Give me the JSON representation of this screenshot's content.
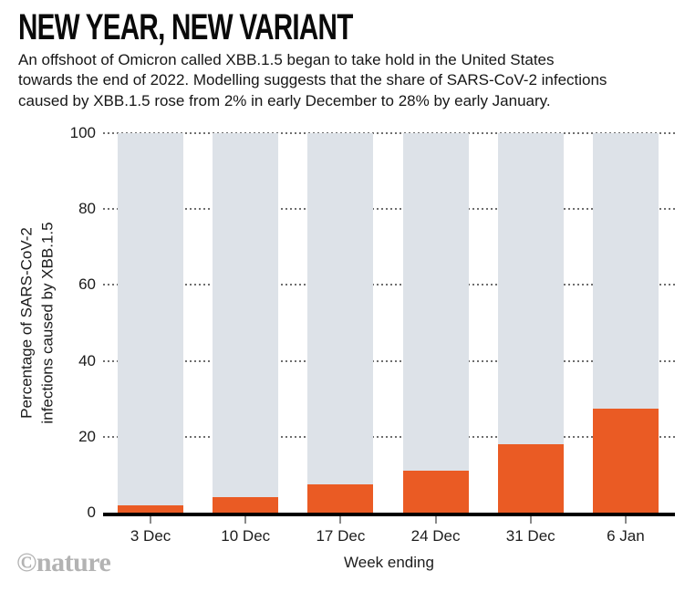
{
  "chart_data": {
    "type": "bar",
    "title": "NEW YEAR, NEW VARIANT",
    "subtitle_lines": [
      "An offshoot of Omicron called XBB.1.5 began to take hold in the United States",
      "towards the end of 2022. Modelling suggests that the share of SARS-CoV-2 infections",
      "caused by XBB.1.5 rose from 2% in early December to 28% by early January."
    ],
    "categories": [
      "3 Dec",
      "10 Dec",
      "17 Dec",
      "24 Dec",
      "31 Dec",
      "6 Jan"
    ],
    "values": [
      2,
      4,
      7.5,
      11,
      18,
      27.5
    ],
    "xlabel": "Week ending",
    "ylabel_lines": [
      "Percentage of SARS-CoV-2",
      "infections caused by XBB.1.5"
    ],
    "y_ticks": [
      0,
      20,
      40,
      60,
      80,
      100
    ],
    "ylim": [
      0,
      100
    ],
    "grid": "dotted horizontal, behind bars",
    "legend": "none",
    "colors": {
      "bar": "#ea5b24",
      "background_bar": "#dde2e8",
      "axis": "#000000",
      "x_tick": "#8a8a8a",
      "grid_dot": "#6e6e6e"
    }
  },
  "footer": {
    "watermark": "©nature",
    "watermark_color": "#b3b3b3"
  }
}
